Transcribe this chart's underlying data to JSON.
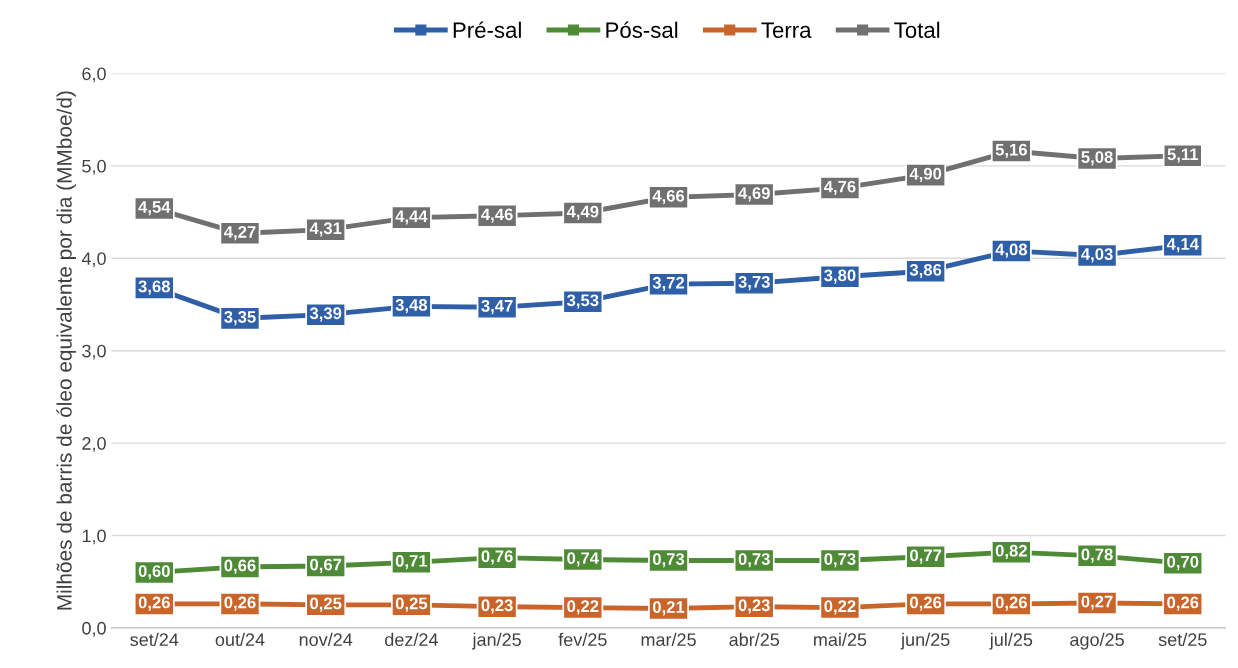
{
  "chart_data": {
    "type": "line",
    "ylabel": "Milhões de barris de óleo equivalente por dia (MMboe/d)",
    "categories": [
      "set/24",
      "out/24",
      "nov/24",
      "dez/24",
      "jan/25",
      "fev/25",
      "mar/25",
      "abr/25",
      "mai/25",
      "jun/25",
      "jul/25",
      "ago/25",
      "set/25"
    ],
    "series": [
      {
        "name": "Pré-sal",
        "color": "#2f5fa7",
        "values": [
          3.68,
          3.35,
          3.39,
          3.48,
          3.47,
          3.53,
          3.72,
          3.73,
          3.8,
          3.86,
          4.08,
          4.03,
          4.14
        ],
        "value_labels": [
          "3,68",
          "3,35",
          "3,39",
          "3,48",
          "3,47",
          "3,53",
          "3,72",
          "3,73",
          "3,80",
          "3,86",
          "4,08",
          "4,03",
          "4,14"
        ]
      },
      {
        "name": "Pós-sal",
        "color": "#4f8a37",
        "values": [
          0.6,
          0.66,
          0.67,
          0.71,
          0.76,
          0.74,
          0.73,
          0.73,
          0.73,
          0.77,
          0.82,
          0.78,
          0.7
        ],
        "value_labels": [
          "0,60",
          "0,66",
          "0,67",
          "0,71",
          "0,76",
          "0,74",
          "0,73",
          "0,73",
          "0,73",
          "0,77",
          "0,82",
          "0,78",
          "0,70"
        ]
      },
      {
        "name": "Terra",
        "color": "#c9652b",
        "values": [
          0.26,
          0.26,
          0.25,
          0.25,
          0.23,
          0.22,
          0.21,
          0.23,
          0.22,
          0.26,
          0.26,
          0.27,
          0.26
        ],
        "value_labels": [
          "0,26",
          "0,26",
          "0,25",
          "0,25",
          "0,23",
          "0,22",
          "0,21",
          "0,23",
          "0,22",
          "0,26",
          "0,26",
          "0,27",
          "0,26"
        ]
      },
      {
        "name": "Total",
        "color": "#707070",
        "values": [
          4.54,
          4.27,
          4.31,
          4.44,
          4.46,
          4.49,
          4.66,
          4.69,
          4.76,
          4.9,
          5.16,
          5.08,
          5.11
        ],
        "value_labels": [
          "4,54",
          "4,27",
          "4,31",
          "4,44",
          "4,46",
          "4,49",
          "4,66",
          "4,69",
          "4,76",
          "4,90",
          "5,16",
          "5,08",
          "5,11"
        ]
      }
    ],
    "ylim": [
      0,
      6
    ],
    "yticks": [
      {
        "value": 0,
        "label": "0,0"
      },
      {
        "value": 1,
        "label": "1,0"
      },
      {
        "value": 2,
        "label": "2,0"
      },
      {
        "value": 3,
        "label": "3,0"
      },
      {
        "value": 4,
        "label": "4,0"
      },
      {
        "value": 5,
        "label": "5,0"
      },
      {
        "value": 6,
        "label": "6,0"
      }
    ],
    "grid": "y",
    "legend": "top",
    "marker": "square",
    "line_style": "solid"
  }
}
